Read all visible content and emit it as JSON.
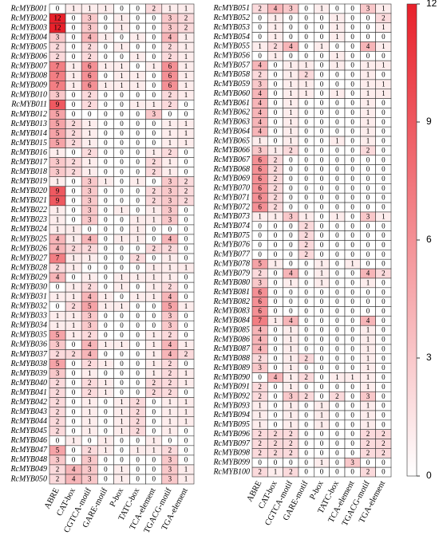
{
  "chart_data": {
    "type": "heatmap",
    "columns": [
      "ABRE",
      "CAT-box",
      "CGTCA-motif",
      "GARE-motif",
      "P-box",
      "TATC-box",
      "TCA-element",
      "TGACG-motif",
      "TGA-element"
    ],
    "rows": [
      "RcMYB001",
      "RcMYB002",
      "RcMYB003",
      "RcMYB004",
      "RcMYB005",
      "RcMYB006",
      "RcMYB007",
      "RcMYB008",
      "RcMYB009",
      "RcMYB010",
      "RcMYB011",
      "RcMYB012",
      "RcMYB013",
      "RcMYB014",
      "RcMYB015",
      "RcMYB016",
      "RcMYB017",
      "RcMYB018",
      "RcMYB019",
      "RcMYB020",
      "RcMYB021",
      "RcMYB022",
      "RcMYB023",
      "RcMYB024",
      "RcMYB025",
      "RcMYB026",
      "RcMYB027",
      "RcMYB028",
      "RcMYB029",
      "RcMYB030",
      "RcMYB031",
      "RcMYB032",
      "RcMYB033",
      "RcMYB034",
      "RcMYB035",
      "RcMYB036",
      "RcMYB037",
      "RcMYB038",
      "RcMYB039",
      "RcMYB040",
      "RcMYB041",
      "RcMYB042",
      "RcMYB043",
      "RcMYB044",
      "RcMYB045",
      "RcMYB046",
      "RcMYB047",
      "RcMYB048",
      "RcMYB049",
      "RcMYB050",
      "RcMYB051",
      "RcMYB052",
      "RcMYB053",
      "RcMYB054",
      "RcMYB055",
      "RcMYB056",
      "RcMYB057",
      "RcMYB058",
      "RcMYB059",
      "RcMYB060",
      "RcMYB061",
      "RcMYB062",
      "RcMYB063",
      "RcMYB064",
      "RcMYB065",
      "RcMYB066",
      "RcMYB067",
      "RcMYB068",
      "RcMYB069",
      "RcMYB070",
      "RcMYB071",
      "RcMYB072",
      "RcMYB073",
      "RcMYB074",
      "RcMYB075",
      "RcMYB076",
      "RcMYB077",
      "RcMYB078",
      "RcMYB079",
      "RcMYB080",
      "RcMYB081",
      "RcMYB082",
      "RcMYB083",
      "RcMYB084",
      "RcMYB085",
      "RcMYB086",
      "RcMYB087",
      "RcMYB088",
      "RcMYB089",
      "RcMYB090",
      "RcMYB091",
      "RcMYB092",
      "RcMYB093",
      "RcMYB094",
      "RcMYB095",
      "RcMYB096",
      "RcMYB097",
      "RcMYB098",
      "RcMYB099",
      "RcMYB100"
    ],
    "values": [
      [
        0,
        1,
        1,
        1,
        0,
        0,
        2,
        1,
        1
      ],
      [
        12,
        0,
        3,
        0,
        1,
        0,
        0,
        3,
        2
      ],
      [
        12,
        0,
        3,
        0,
        1,
        0,
        0,
        3,
        2
      ],
      [
        3,
        0,
        4,
        1,
        0,
        1,
        0,
        4,
        1
      ],
      [
        2,
        0,
        2,
        0,
        1,
        0,
        0,
        2,
        1
      ],
      [
        2,
        0,
        2,
        0,
        0,
        1,
        0,
        2,
        1
      ],
      [
        7,
        1,
        6,
        1,
        1,
        0,
        1,
        6,
        1
      ],
      [
        7,
        1,
        6,
        0,
        1,
        1,
        0,
        6,
        1
      ],
      [
        7,
        1,
        6,
        1,
        1,
        1,
        0,
        6,
        1
      ],
      [
        3,
        0,
        2,
        0,
        0,
        0,
        0,
        2,
        1
      ],
      [
        9,
        0,
        2,
        0,
        0,
        1,
        1,
        2,
        0
      ],
      [
        5,
        0,
        0,
        0,
        0,
        0,
        3,
        0,
        0
      ],
      [
        5,
        2,
        1,
        0,
        0,
        0,
        0,
        1,
        1
      ],
      [
        5,
        2,
        1,
        0,
        0,
        0,
        0,
        1,
        1
      ],
      [
        5,
        2,
        1,
        0,
        0,
        0,
        0,
        1,
        1
      ],
      [
        1,
        0,
        2,
        0,
        0,
        0,
        1,
        2,
        0
      ],
      [
        3,
        2,
        1,
        0,
        0,
        0,
        2,
        1,
        0
      ],
      [
        3,
        2,
        1,
        0,
        0,
        0,
        2,
        1,
        0
      ],
      [
        1,
        0,
        3,
        1,
        0,
        1,
        0,
        3,
        2
      ],
      [
        9,
        0,
        3,
        0,
        0,
        0,
        2,
        3,
        2
      ],
      [
        9,
        0,
        3,
        0,
        0,
        0,
        2,
        3,
        2
      ],
      [
        1,
        0,
        3,
        0,
        1,
        0,
        1,
        3,
        0
      ],
      [
        1,
        0,
        3,
        0,
        0,
        1,
        1,
        3,
        0
      ],
      [
        1,
        1,
        0,
        0,
        0,
        1,
        0,
        0,
        0
      ],
      [
        4,
        1,
        4,
        0,
        1,
        1,
        0,
        4,
        0
      ],
      [
        4,
        2,
        2,
        0,
        0,
        0,
        2,
        2,
        0
      ],
      [
        7,
        1,
        1,
        0,
        0,
        2,
        0,
        1,
        0
      ],
      [
        2,
        1,
        0,
        0,
        0,
        0,
        1,
        1,
        1
      ],
      [
        4,
        0,
        1,
        0,
        1,
        1,
        1,
        1,
        0
      ],
      [
        0,
        1,
        2,
        0,
        1,
        0,
        1,
        2,
        0
      ],
      [
        1,
        1,
        4,
        1,
        0,
        1,
        1,
        4,
        0
      ],
      [
        0,
        2,
        5,
        1,
        1,
        0,
        0,
        5,
        1
      ],
      [
        1,
        1,
        3,
        0,
        0,
        0,
        0,
        3,
        0
      ],
      [
        1,
        1,
        3,
        0,
        0,
        0,
        0,
        3,
        0
      ],
      [
        5,
        1,
        2,
        0,
        0,
        0,
        1,
        2,
        0
      ],
      [
        3,
        0,
        4,
        1,
        1,
        0,
        1,
        4,
        1
      ],
      [
        2,
        2,
        4,
        0,
        0,
        0,
        1,
        4,
        2
      ],
      [
        5,
        0,
        2,
        1,
        0,
        0,
        1,
        2,
        0
      ],
      [
        3,
        0,
        1,
        0,
        0,
        0,
        1,
        2,
        1
      ],
      [
        2,
        0,
        2,
        1,
        0,
        0,
        2,
        2,
        1
      ],
      [
        2,
        0,
        2,
        1,
        0,
        0,
        2,
        2,
        0
      ],
      [
        2,
        0,
        1,
        0,
        1,
        2,
        0,
        1,
        1
      ],
      [
        2,
        0,
        1,
        0,
        1,
        2,
        0,
        1,
        1
      ],
      [
        2,
        0,
        1,
        0,
        1,
        2,
        0,
        1,
        1
      ],
      [
        2,
        0,
        1,
        0,
        1,
        2,
        0,
        1,
        0
      ],
      [
        0,
        1,
        0,
        1,
        0,
        0,
        1,
        0,
        0
      ],
      [
        5,
        0,
        2,
        1,
        0,
        1,
        1,
        2,
        0
      ],
      [
        3,
        0,
        3,
        0,
        0,
        0,
        0,
        3,
        0
      ],
      [
        2,
        4,
        3,
        0,
        1,
        0,
        0,
        3,
        1
      ],
      [
        2,
        4,
        3,
        0,
        1,
        0,
        0,
        3,
        1
      ],
      [
        2,
        4,
        3,
        0,
        1,
        0,
        0,
        3,
        1
      ],
      [
        0,
        1,
        0,
        0,
        0,
        1,
        0,
        0,
        2
      ],
      [
        0,
        1,
        0,
        0,
        0,
        1,
        0,
        0,
        1
      ],
      [
        0,
        1,
        0,
        0,
        0,
        1,
        0,
        0,
        0
      ],
      [
        1,
        2,
        4,
        0,
        1,
        0,
        0,
        4,
        1
      ],
      [
        0,
        1,
        0,
        0,
        0,
        1,
        0,
        0,
        0
      ],
      [
        4,
        0,
        1,
        1,
        0,
        1,
        0,
        1,
        1
      ],
      [
        2,
        0,
        1,
        2,
        0,
        0,
        0,
        1,
        0
      ],
      [
        3,
        0,
        1,
        1,
        0,
        0,
        0,
        1,
        1
      ],
      [
        4,
        0,
        1,
        1,
        0,
        1,
        0,
        1,
        1
      ],
      [
        4,
        0,
        1,
        0,
        0,
        0,
        0,
        1,
        0
      ],
      [
        4,
        0,
        1,
        0,
        0,
        0,
        0,
        1,
        0
      ],
      [
        4,
        0,
        1,
        0,
        0,
        0,
        0,
        1,
        0
      ],
      [
        4,
        0,
        1,
        0,
        0,
        0,
        0,
        1,
        0
      ],
      [
        1,
        0,
        1,
        0,
        0,
        1,
        0,
        1,
        0
      ],
      [
        3,
        1,
        2,
        0,
        0,
        0,
        0,
        2,
        0
      ],
      [
        6,
        2,
        0,
        0,
        0,
        0,
        0,
        0,
        0
      ],
      [
        6,
        2,
        0,
        0,
        0,
        0,
        0,
        0,
        0
      ],
      [
        6,
        2,
        0,
        0,
        0,
        0,
        0,
        0,
        0
      ],
      [
        6,
        2,
        0,
        0,
        0,
        0,
        0,
        0,
        0
      ],
      [
        6,
        2,
        0,
        0,
        0,
        0,
        0,
        0,
        0
      ],
      [
        6,
        2,
        0,
        0,
        0,
        0,
        0,
        0,
        0
      ],
      [
        1,
        1,
        3,
        1,
        0,
        1,
        0,
        3,
        1
      ],
      [
        0,
        0,
        0,
        2,
        0,
        0,
        0,
        0,
        0
      ],
      [
        0,
        0,
        0,
        2,
        0,
        0,
        0,
        0,
        0
      ],
      [
        0,
        0,
        0,
        2,
        0,
        0,
        0,
        0,
        0
      ],
      [
        0,
        0,
        0,
        2,
        0,
        0,
        0,
        0,
        0
      ],
      [
        5,
        1,
        0,
        0,
        1,
        0,
        1,
        0,
        0
      ],
      [
        2,
        0,
        4,
        0,
        1,
        0,
        0,
        4,
        2
      ],
      [
        3,
        0,
        1,
        0,
        1,
        0,
        0,
        1,
        0
      ],
      [
        6,
        0,
        0,
        0,
        0,
        0,
        0,
        0,
        0
      ],
      [
        6,
        0,
        0,
        0,
        0,
        0,
        0,
        0,
        0
      ],
      [
        6,
        0,
        0,
        0,
        0,
        0,
        0,
        0,
        0
      ],
      [
        7,
        1,
        4,
        0,
        0,
        0,
        0,
        4,
        0
      ],
      [
        4,
        0,
        1,
        0,
        0,
        0,
        0,
        1,
        0
      ],
      [
        4,
        0,
        1,
        0,
        0,
        0,
        0,
        1,
        0
      ],
      [
        4,
        0,
        1,
        0,
        0,
        0,
        0,
        1,
        0
      ],
      [
        2,
        0,
        1,
        2,
        0,
        0,
        0,
        1,
        0
      ],
      [
        3,
        0,
        1,
        0,
        0,
        0,
        0,
        1,
        0
      ],
      [
        0,
        4,
        1,
        2,
        0,
        1,
        1,
        1,
        0
      ],
      [
        2,
        0,
        1,
        0,
        0,
        0,
        0,
        1,
        0
      ],
      [
        2,
        0,
        3,
        2,
        0,
        2,
        0,
        3,
        0
      ],
      [
        1,
        0,
        1,
        0,
        1,
        0,
        0,
        1,
        0
      ],
      [
        1,
        0,
        1,
        0,
        1,
        0,
        0,
        1,
        0
      ],
      [
        1,
        0,
        1,
        0,
        1,
        0,
        0,
        1,
        0
      ],
      [
        2,
        2,
        2,
        0,
        0,
        0,
        0,
        2,
        2
      ],
      [
        2,
        2,
        2,
        0,
        0,
        0,
        0,
        2,
        2
      ],
      [
        2,
        2,
        2,
        0,
        0,
        0,
        0,
        2,
        2
      ],
      [
        0,
        0,
        0,
        0,
        1,
        0,
        3,
        0,
        0
      ],
      [
        2,
        1,
        2,
        0,
        0,
        0,
        0,
        2,
        0
      ]
    ],
    "color_range": [
      "#ffffff",
      "#e8212b"
    ],
    "clim": [
      0,
      12
    ],
    "cticks": [
      0,
      3,
      6,
      9,
      12
    ]
  }
}
